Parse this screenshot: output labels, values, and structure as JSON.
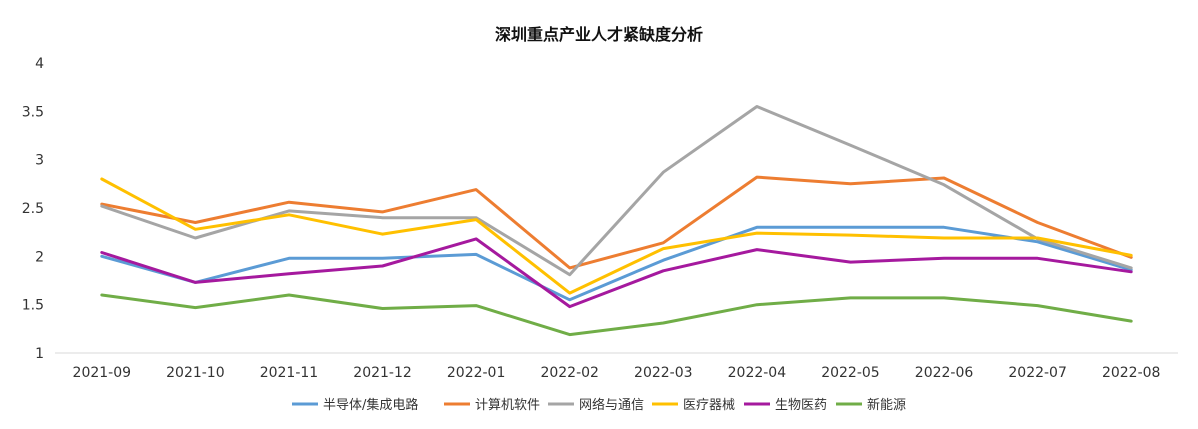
{
  "chart_data": {
    "type": "line",
    "title": "深圳重点产业人才紧缺度分析",
    "xlabel": "",
    "ylabel": "",
    "ylim": [
      1,
      4
    ],
    "yticks": [
      "1",
      "1.5",
      "2",
      "2.5",
      "3",
      "3.5",
      "4"
    ],
    "grid": false,
    "legend_position": "bottom",
    "categories": [
      "2021-09",
      "2021-10",
      "2021-11",
      "2021-12",
      "2022-01",
      "2022-02",
      "2022-03",
      "2022-04",
      "2022-05",
      "2022-06",
      "2022-07",
      "2022-08"
    ],
    "series": [
      {
        "name": "半导体/集成电路",
        "color": "#5b9bd5",
        "values": [
          2.0,
          1.73,
          1.98,
          1.98,
          2.02,
          1.55,
          1.96,
          2.3,
          2.3,
          2.3,
          2.15,
          1.86
        ]
      },
      {
        "name": "计算机软件",
        "color": "#ed7d31",
        "values": [
          2.54,
          2.35,
          2.56,
          2.46,
          2.69,
          1.88,
          2.14,
          2.82,
          2.75,
          2.81,
          2.35,
          1.99
        ]
      },
      {
        "name": "网络与通信",
        "color": "#a5a5a5",
        "values": [
          2.52,
          2.19,
          2.47,
          2.4,
          2.4,
          1.81,
          2.87,
          3.55,
          3.15,
          2.74,
          2.18,
          1.88
        ]
      },
      {
        "name": "医疗器械",
        "color": "#ffc000",
        "values": [
          2.8,
          2.28,
          2.43,
          2.23,
          2.38,
          1.62,
          2.08,
          2.24,
          2.22,
          2.19,
          2.19,
          2.01
        ]
      },
      {
        "name": "生物医药",
        "color": "#a5199e",
        "values": [
          2.04,
          1.73,
          1.82,
          1.9,
          2.18,
          1.48,
          1.85,
          2.07,
          1.94,
          1.98,
          1.98,
          1.84
        ]
      },
      {
        "name": "新能源",
        "color": "#70ad47",
        "values": [
          1.6,
          1.47,
          1.6,
          1.46,
          1.49,
          1.19,
          1.31,
          1.5,
          1.57,
          1.57,
          1.49,
          1.33
        ]
      }
    ]
  }
}
